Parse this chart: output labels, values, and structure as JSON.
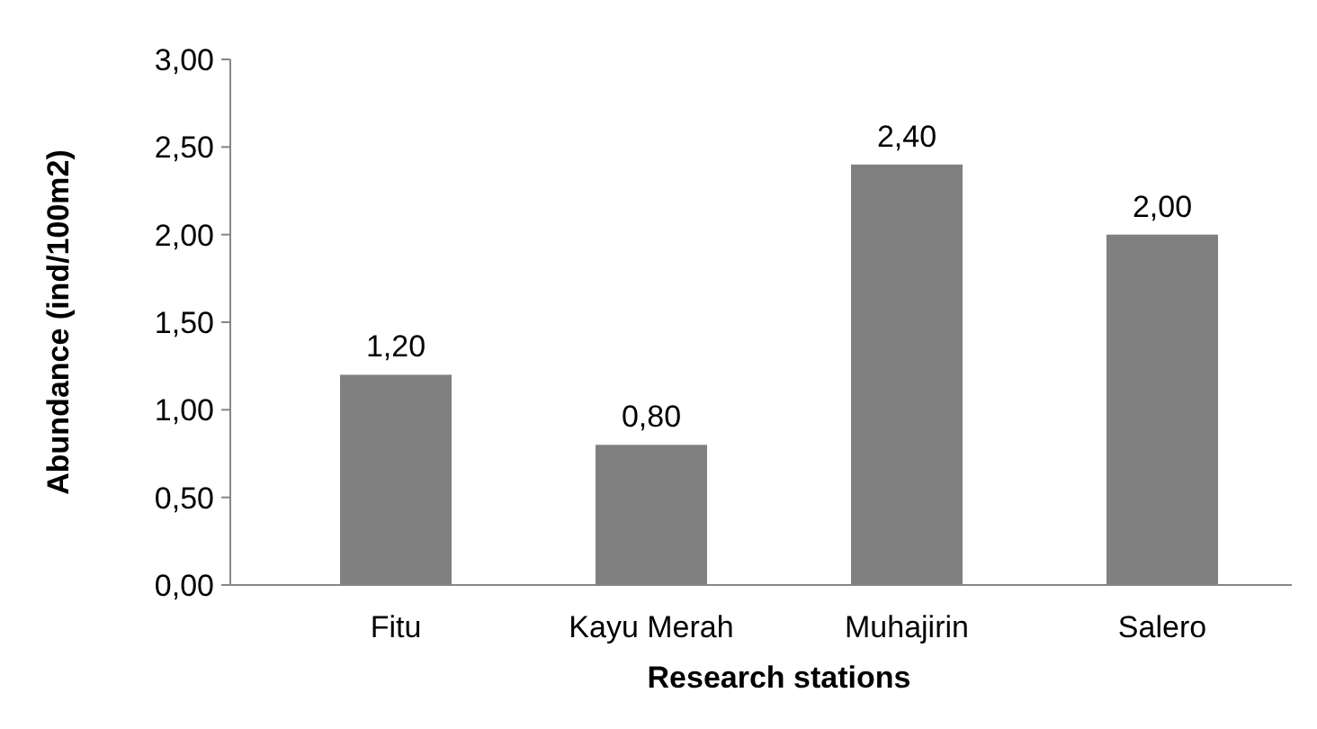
{
  "chart_data": {
    "type": "bar",
    "xlabel": "Research stations",
    "ylabel": "Abundance (ind/100m2)",
    "categories": [
      "Fitu",
      "Kayu Merah",
      "Muhajirin",
      "Salero"
    ],
    "values": [
      1.2,
      0.8,
      2.4,
      2.0
    ],
    "value_labels": [
      "1,20",
      "0,80",
      "2,40",
      "2,00"
    ],
    "color": "#808080",
    "ylim": [
      0,
      3
    ],
    "yticks": [
      {
        "value": 0,
        "label": "0,00"
      },
      {
        "value": 0.5,
        "label": "0,50"
      },
      {
        "value": 1,
        "label": "1,00"
      },
      {
        "value": 1.5,
        "label": "1,50"
      },
      {
        "value": 2,
        "label": "2,00"
      },
      {
        "value": 2.5,
        "label": "2,50"
      },
      {
        "value": 3,
        "label": "3,00"
      }
    ],
    "grid": false
  }
}
